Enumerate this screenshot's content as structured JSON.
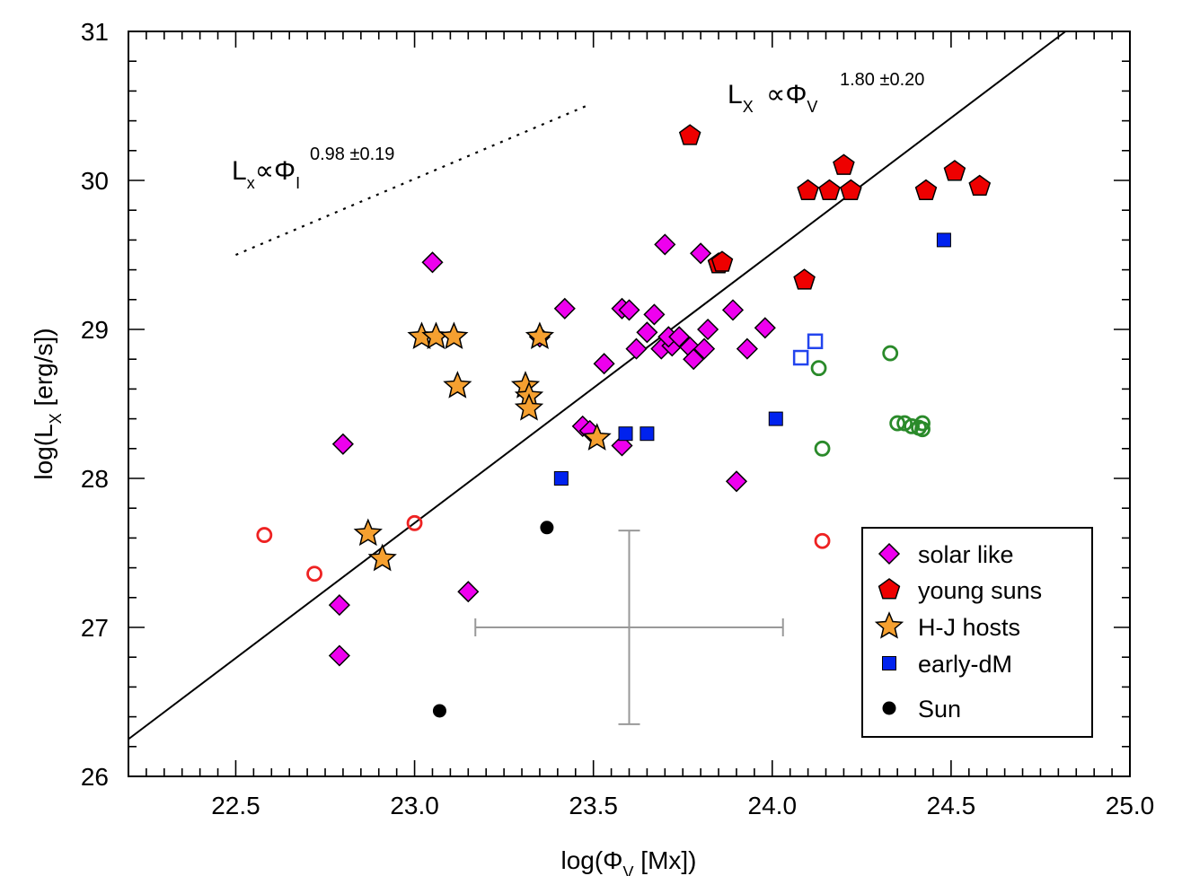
{
  "chart_data": {
    "type": "scatter",
    "xlabel": "log(Φ",
    "xlabel_sub": "V",
    "xlabel_tail": " [Mx])",
    "ylabel": "log(L",
    "ylabel_sub": "X",
    "ylabel_tail": " [erg/s])",
    "xlim": [
      22.2,
      25.0
    ],
    "ylim": [
      26,
      31
    ],
    "xticks": [
      "22.5",
      "23.0",
      "23.5",
      "24.0",
      "24.5",
      "25.0"
    ],
    "xtick_values": [
      22.5,
      23.0,
      23.5,
      24.0,
      24.5,
      25.0
    ],
    "yticks": [
      "26",
      "27",
      "28",
      "29",
      "30",
      "31"
    ],
    "ytick_values": [
      26,
      27,
      28,
      29,
      30,
      31
    ],
    "fit_solid": {
      "x": [
        22.2,
        24.82
      ],
      "y": [
        26.25,
        31.0
      ],
      "label_main": "L",
      "label_sub": "X",
      "label_prop": " ∝Φ",
      "label_phi_sub": "V",
      "label_exp": "1.80 ±0.20"
    },
    "fit_dotted": {
      "x": [
        22.5,
        23.48
      ],
      "y": [
        29.5,
        30.5
      ],
      "label_main": "L",
      "label_sub": "x",
      "label_prop": "∝Φ",
      "label_phi_sub": "I",
      "label_exp": "0.98 ±0.19"
    },
    "error_bar": {
      "x": 23.6,
      "y": 27.0,
      "xerr": [
        23.17,
        24.03
      ],
      "yerr": [
        26.35,
        27.65
      ]
    },
    "legend": {
      "position": "bottom-right",
      "entries": [
        {
          "label": "solar like",
          "series": "solar_like"
        },
        {
          "label": "young suns",
          "series": "young_suns"
        },
        {
          "label": "H-J hosts",
          "series": "hj_hosts"
        },
        {
          "label": "early-dM",
          "series": "early_dm"
        },
        {
          "label": "Sun",
          "series": "sun"
        }
      ]
    },
    "series": [
      {
        "name": "solar_like",
        "marker": "diamond",
        "color": "#ee00ee",
        "x": [
          23.05,
          22.8,
          22.79,
          22.79,
          23.15,
          23.42,
          23.35,
          23.53,
          23.58,
          23.6,
          23.62,
          23.65,
          23.67,
          23.69,
          23.7,
          23.72,
          23.71,
          23.74,
          23.77,
          23.8,
          23.81,
          23.82,
          23.78,
          23.89,
          23.93,
          23.98,
          23.47,
          23.49,
          23.58,
          23.9
        ],
        "y": [
          29.45,
          28.23,
          27.15,
          26.81,
          27.24,
          29.14,
          28.95,
          28.77,
          29.14,
          29.13,
          28.87,
          28.98,
          29.1,
          28.87,
          29.57,
          28.89,
          28.95,
          28.95,
          28.88,
          29.51,
          28.87,
          29.0,
          28.8,
          29.13,
          28.87,
          29.01,
          28.35,
          28.32,
          28.22,
          27.98
        ]
      },
      {
        "name": "young_suns",
        "marker": "pentagon",
        "color": "#ee0000",
        "x": [
          23.77,
          23.85,
          23.86,
          24.09,
          24.1,
          24.16,
          24.2,
          24.22,
          24.43,
          24.51,
          24.58
        ],
        "y": [
          30.3,
          29.44,
          29.45,
          29.33,
          29.93,
          29.93,
          30.1,
          29.93,
          29.93,
          30.06,
          29.96
        ]
      },
      {
        "name": "hj_hosts",
        "marker": "star",
        "color": "#f5a030",
        "x": [
          23.02,
          23.06,
          23.11,
          23.12,
          23.35,
          23.31,
          23.32,
          23.32,
          23.51,
          22.87,
          22.91
        ],
        "y": [
          28.95,
          28.95,
          28.95,
          28.62,
          28.95,
          28.62,
          28.55,
          28.47,
          28.27,
          27.63,
          27.46
        ]
      },
      {
        "name": "early_dm",
        "marker": "square",
        "color": "#0022ee",
        "x": [
          23.41,
          23.59,
          23.65,
          24.01,
          24.48
        ],
        "y": [
          28.0,
          28.3,
          28.3,
          28.4,
          29.6
        ]
      },
      {
        "name": "early_dm_open",
        "marker": "square-open",
        "color": "#2244ee",
        "x": [
          24.08,
          24.12
        ],
        "y": [
          28.81,
          28.92
        ]
      },
      {
        "name": "sun",
        "marker": "circle",
        "color": "#000000",
        "x": [
          23.37,
          23.07
        ],
        "y": [
          27.67,
          26.44
        ]
      },
      {
        "name": "red_open",
        "marker": "circle-open",
        "color": "#ee2222",
        "x": [
          22.58,
          22.72,
          23.0,
          24.14
        ],
        "y": [
          27.62,
          27.36,
          27.7,
          27.58
        ]
      },
      {
        "name": "green_open",
        "marker": "circle-open",
        "color": "#2a8a2a",
        "x": [
          24.13,
          24.33,
          24.14,
          24.35,
          24.37,
          24.39,
          24.41,
          24.42,
          24.42
        ],
        "y": [
          28.74,
          28.84,
          28.2,
          28.37,
          28.37,
          28.35,
          28.34,
          28.37,
          28.33
        ]
      }
    ]
  }
}
